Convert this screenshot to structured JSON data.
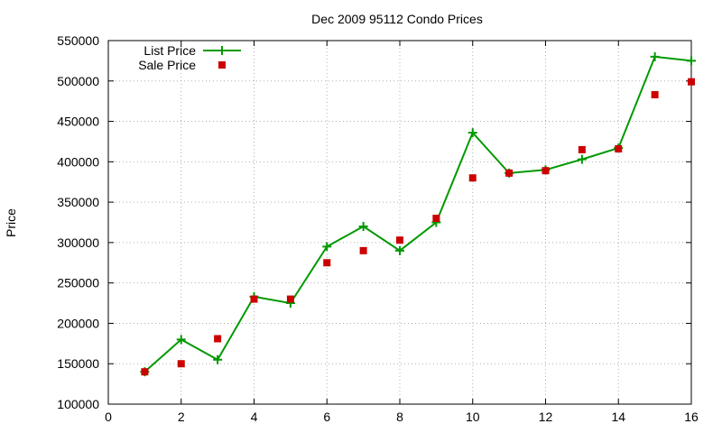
{
  "chart_data": {
    "type": "line",
    "title": "Dec 2009 95112 Condo Prices",
    "xlabel": "",
    "ylabel": "Price",
    "xlim": [
      0,
      16
    ],
    "ylim": [
      100000,
      550000
    ],
    "xticks": [
      0,
      2,
      4,
      6,
      8,
      10,
      12,
      14,
      16
    ],
    "yticks": [
      100000,
      150000,
      200000,
      250000,
      300000,
      350000,
      400000,
      450000,
      500000,
      550000
    ],
    "grid": true,
    "legend_position": "top-left",
    "series": [
      {
        "name": "List Price",
        "style": "line-plus",
        "color": "#009900",
        "x": [
          1,
          2,
          3,
          4,
          5,
          6,
          7,
          8,
          9,
          10,
          11,
          12,
          13,
          14,
          15,
          16
        ],
        "y": [
          140000,
          180000,
          155000,
          233000,
          225000,
          295000,
          320000,
          290000,
          325000,
          436000,
          386000,
          390000,
          403000,
          417000,
          530000,
          525000
        ]
      },
      {
        "name": "Sale Price",
        "style": "square",
        "color": "#cc0000",
        "x": [
          1,
          2,
          3,
          4,
          5,
          6,
          7,
          8,
          9,
          10,
          11,
          12,
          13,
          14,
          15,
          16
        ],
        "y": [
          140000,
          150000,
          181000,
          230000,
          230000,
          275000,
          290000,
          303000,
          330000,
          380000,
          386000,
          389000,
          415000,
          416000,
          483000,
          499000
        ]
      }
    ]
  }
}
